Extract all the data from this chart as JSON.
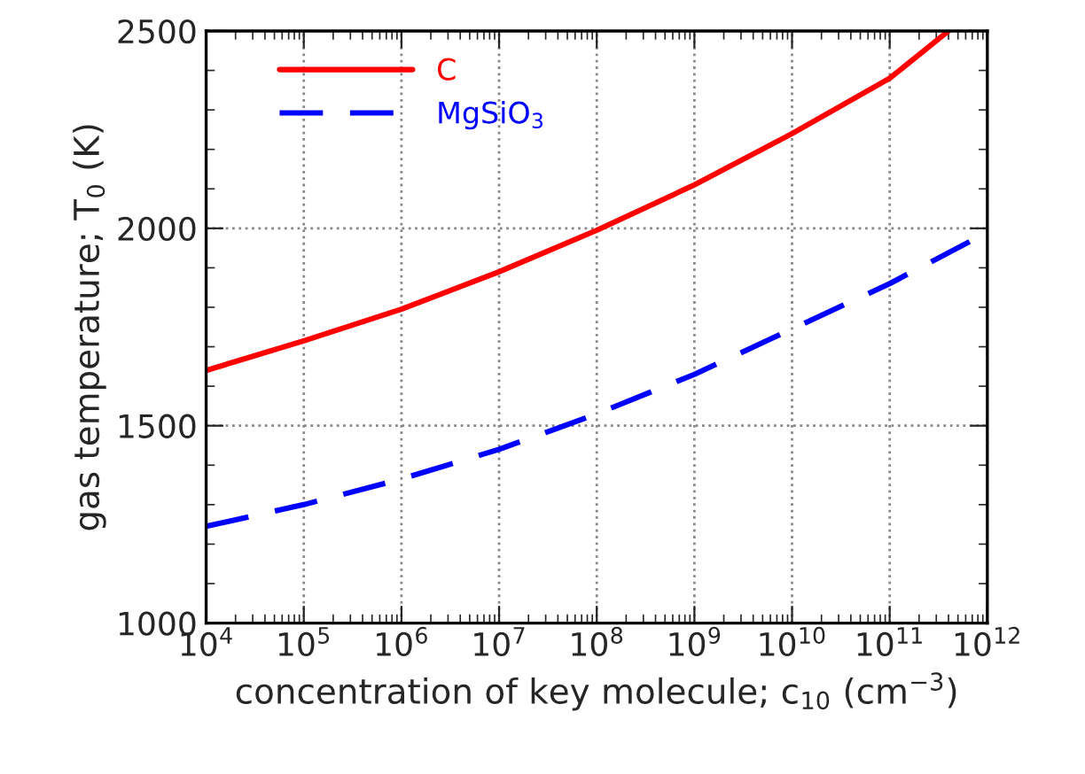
{
  "chart_data": {
    "type": "line",
    "xlabel": "concentration of key molecule; c$_{10}$ (cm$^{−3}$)",
    "ylabel": "gas temperature; T$_{0}$ (K)",
    "log": "x",
    "xlim": [
      10000,
      1000000000000
    ],
    "ylim": [
      1000,
      2500
    ],
    "xticks": [
      {
        "value": 10000,
        "label": "10$^{4}$"
      },
      {
        "value": 100000,
        "label": "10$^{5}$"
      },
      {
        "value": 1000000,
        "label": "10$^{6}$"
      },
      {
        "value": 10000000,
        "label": "10$^{7}$"
      },
      {
        "value": 100000000,
        "label": "10$^{8}$"
      },
      {
        "value": 1000000000,
        "label": "10$^{9}$"
      },
      {
        "value": 10000000000,
        "label": "10$^{10}$"
      },
      {
        "value": 100000000000,
        "label": "10$^{11}$"
      },
      {
        "value": 1000000000000,
        "label": "10$^{12}$"
      }
    ],
    "yticks": [
      1000,
      1500,
      2000,
      2500
    ],
    "grid": true,
    "legend": "top left",
    "marker": "none",
    "series": [
      {
        "name": "C",
        "color": "#ff0000",
        "line_style": "solid",
        "x": [
          10000,
          100000,
          1000000,
          10000000,
          100000000,
          1000000000,
          10000000000,
          100000000000,
          400000000000
        ],
        "values": [
          1640,
          1715,
          1795,
          1890,
          1995,
          2110,
          2240,
          2380,
          2500
        ]
      },
      {
        "name": "MgSiO$_{3}$",
        "color": "#0000ff",
        "line_style": "dashed",
        "x": [
          10000,
          100000,
          1000000,
          10000000,
          100000000,
          1000000000,
          10000000000,
          100000000000,
          1000000000000
        ],
        "values": [
          1245,
          1300,
          1365,
          1440,
          1530,
          1630,
          1745,
          1860,
          1990
        ]
      }
    ]
  }
}
